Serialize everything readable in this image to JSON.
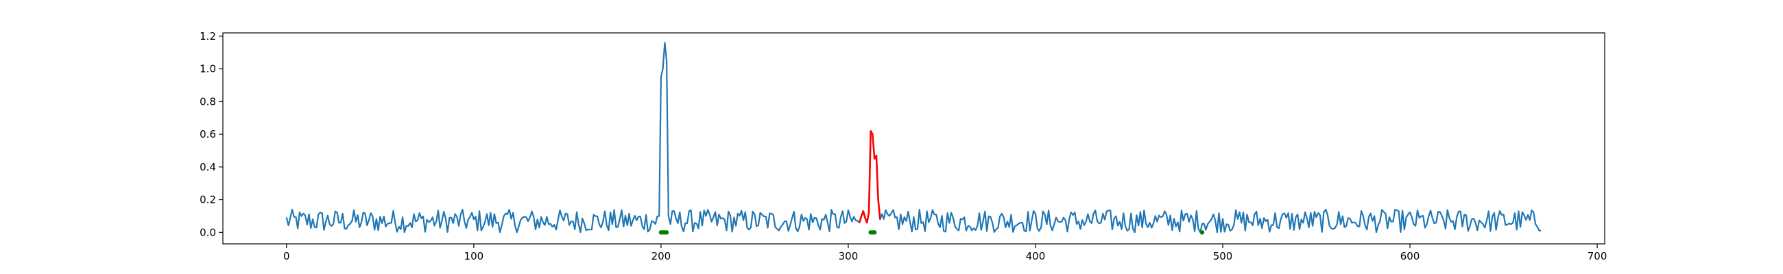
{
  "chart_data": {
    "type": "line",
    "title": "",
    "xlabel": "",
    "ylabel": "",
    "xlim": [
      -34,
      704
    ],
    "ylim": [
      -0.07,
      1.22
    ],
    "grid": false,
    "legend": "none",
    "x_ticks": [
      0,
      100,
      200,
      300,
      400,
      500,
      600,
      700
    ],
    "x_tick_labels": [
      "0",
      "100",
      "200",
      "300",
      "400",
      "500",
      "600",
      "700"
    ],
    "y_ticks": [
      0.0,
      0.2,
      0.4,
      0.6,
      0.8,
      1.0,
      1.2
    ],
    "y_tick_labels": [
      "0.0",
      "0.2",
      "0.4",
      "0.6",
      "0.8",
      "1.0",
      "1.2"
    ],
    "series": [
      {
        "role": "signal",
        "color": "#1f77b4",
        "x_start": 0,
        "x_end": 670,
        "baseline_mean": 0.07,
        "baseline_amplitude": 0.07,
        "spikes": [
          {
            "x": [
              199,
              200,
              201,
              202,
              203,
              204,
              205
            ],
            "y": [
              0.1,
              0.95,
              1.0,
              1.16,
              1.05,
              0.1,
              0.05
            ]
          }
        ]
      },
      {
        "role": "highlighted-anomaly",
        "color": "#ff0000",
        "x": [
          306,
          307,
          308,
          309,
          310,
          311,
          312,
          313,
          314,
          315,
          316,
          317
        ],
        "y": [
          0.06,
          0.1,
          0.13,
          0.09,
          0.06,
          0.12,
          0.62,
          0.6,
          0.45,
          0.47,
          0.2,
          0.08
        ]
      }
    ],
    "markers": {
      "color": "#008000",
      "y": 0.0,
      "x": [
        200,
        201,
        202,
        203,
        312,
        313,
        314,
        489
      ]
    },
    "colors": {
      "signal": "#1f77b4",
      "anomaly": "#ff0000",
      "marker": "#008000",
      "axes": "#000000",
      "background": "#ffffff"
    }
  }
}
